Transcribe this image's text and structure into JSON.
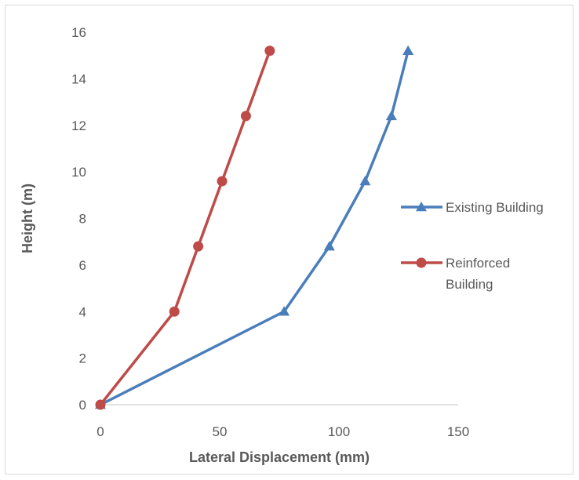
{
  "chart_data": {
    "type": "scatter",
    "title": "",
    "xlabel": "Lateral Displacement (mm)",
    "ylabel": "Height (m)",
    "xlim": [
      0,
      150
    ],
    "ylim": [
      0,
      16
    ],
    "xticks": [
      0,
      50,
      100,
      150
    ],
    "yticks": [
      0,
      2,
      4,
      6,
      8,
      10,
      12,
      14,
      16
    ],
    "grid": false,
    "legend_position": "right",
    "series": [
      {
        "name": "Existing Building",
        "color": "#4a7ebb",
        "marker": "triangle",
        "points": [
          {
            "x": 0,
            "y": 0
          },
          {
            "x": 77,
            "y": 4
          },
          {
            "x": 96,
            "y": 6.8
          },
          {
            "x": 111,
            "y": 9.6
          },
          {
            "x": 122,
            "y": 12.4
          },
          {
            "x": 129,
            "y": 15.2
          }
        ]
      },
      {
        "name": "Reinforced Building",
        "legend_lines": [
          "Reinforced",
          "Building"
        ],
        "color": "#be4b48",
        "marker": "circle",
        "points": [
          {
            "x": 0,
            "y": 0
          },
          {
            "x": 31,
            "y": 4
          },
          {
            "x": 41,
            "y": 6.8
          },
          {
            "x": 51,
            "y": 9.6
          },
          {
            "x": 61,
            "y": 12.4
          },
          {
            "x": 71,
            "y": 15.2
          }
        ]
      }
    ]
  }
}
